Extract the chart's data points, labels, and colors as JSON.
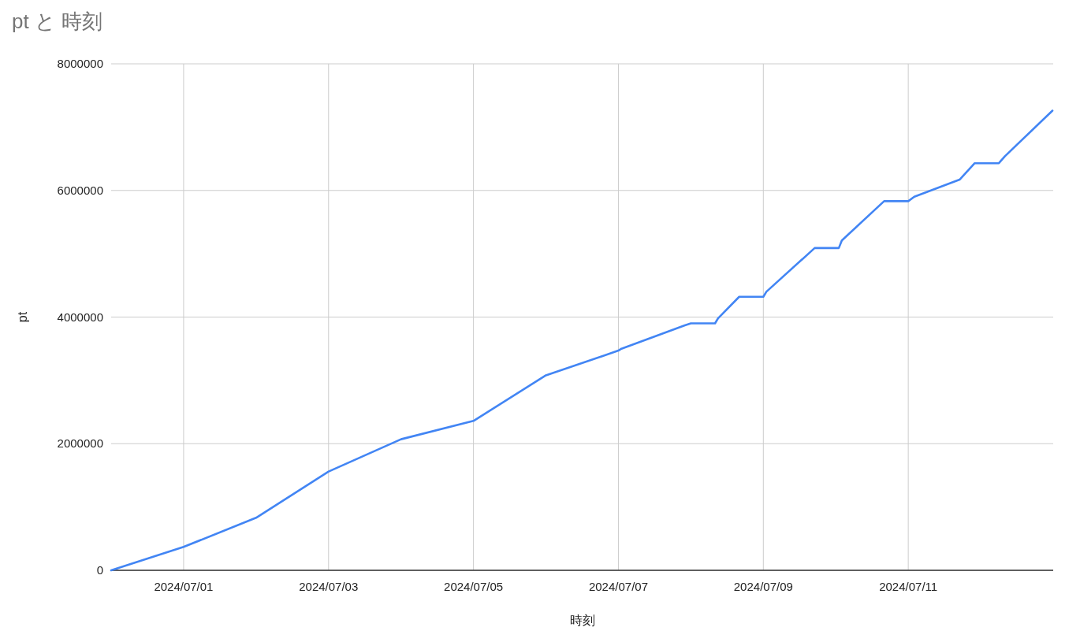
{
  "chart_data": {
    "type": "line",
    "title": "pt と 時刻",
    "xlabel": "時刻",
    "ylabel": "pt",
    "x": [
      "2024-06-30T00:00",
      "2024-07-01T00:00",
      "2024-07-02T00:00",
      "2024-07-03T00:00",
      "2024-07-04T00:00",
      "2024-07-05T00:00",
      "2024-07-06T00:00",
      "2024-07-07T00:00",
      "2024-07-07T01:00",
      "2024-07-07T22:00",
      "2024-07-08T00:00",
      "2024-07-08T08:00",
      "2024-07-08T09:00",
      "2024-07-08T16:00",
      "2024-07-09T00:00",
      "2024-07-09T01:00",
      "2024-07-09T17:00",
      "2024-07-10T01:00",
      "2024-07-10T02:00",
      "2024-07-10T16:00",
      "2024-07-11T00:00",
      "2024-07-11T02:00",
      "2024-07-11T17:00",
      "2024-07-11T22:00",
      "2024-07-12T06:00",
      "2024-07-12T08:00",
      "2024-07-12T23:45"
    ],
    "series": [
      {
        "color": "#4285f4",
        "values": [
          0,
          370000,
          830000,
          1560000,
          2070000,
          2360000,
          3080000,
          3470000,
          3500000,
          3870000,
          3900000,
          3900000,
          3980000,
          4320000,
          4320000,
          4400000,
          5090000,
          5090000,
          5210000,
          5830000,
          5830000,
          5900000,
          6170000,
          6430000,
          6430000,
          6540000,
          7260000
        ]
      }
    ],
    "xlim": [
      "2024-06-30",
      "2024-07-13"
    ],
    "xticks": [
      {
        "value": "2024-07-01",
        "label": "2024/07/01"
      },
      {
        "value": "2024-07-03",
        "label": "2024/07/03"
      },
      {
        "value": "2024-07-05",
        "label": "2024/07/05"
      },
      {
        "value": "2024-07-07",
        "label": "2024/07/07"
      },
      {
        "value": "2024-07-09",
        "label": "2024/07/09"
      },
      {
        "value": "2024-07-11",
        "label": "2024/07/11"
      }
    ],
    "ylim": [
      0,
      8000000
    ],
    "yticks": [
      0,
      2000000,
      4000000,
      6000000,
      8000000
    ],
    "grid": true
  }
}
